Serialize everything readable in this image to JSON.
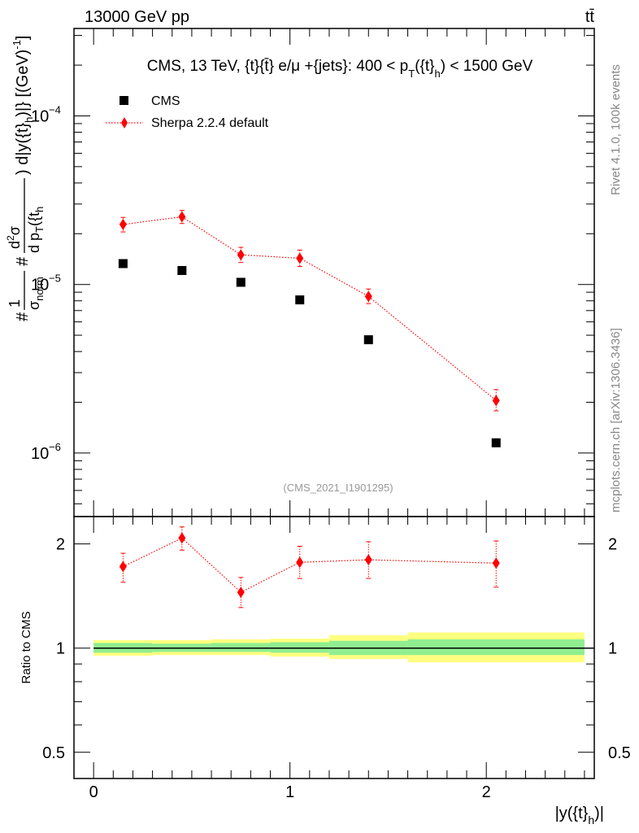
{
  "header": {
    "energy_label": "13000 GeV pp",
    "process_label": "tt̄"
  },
  "side_labels": {
    "rivet": "Rivet 4.1.0,  100k events",
    "mcplots": "mcplots.cern.ch [arXiv:1306.3436]"
  },
  "chart_data": [
    {
      "type": "scatter",
      "panel": "main",
      "title": "CMS, 13 TeV, {t}{t̄} e/μ +{jets}: 400 <  p_T({t}_h) < 1500 GeV",
      "ylabel": "# 1/σ_norm  # d²σ / d p_T({t_h) d|y({t}_h)|} [(GeV)⁻¹]",
      "yscale": "log",
      "xlim": [
        -0.1,
        2.55
      ],
      "ylim": [
        4.2e-07,
        0.00033
      ],
      "ytick_labels": [
        {
          "value": 1e-06,
          "base": "10",
          "exp": "−6"
        },
        {
          "value": 1e-05,
          "base": "10",
          "exp": "−5"
        },
        {
          "value": 0.0001,
          "base": "10",
          "exp": "−4"
        }
      ],
      "watermark": "(CMS_2021_I1901295)",
      "legend": {
        "position": "top-left",
        "entries": [
          "CMS",
          "Sherpa 2.2.4 default"
        ]
      },
      "series": [
        {
          "name": "CMS",
          "marker": "square",
          "color": "#000000",
          "x": [
            0.15,
            0.45,
            0.75,
            1.05,
            1.4,
            2.05
          ],
          "xerr": [
            0.15,
            0.15,
            0.15,
            0.15,
            0.2,
            0.45
          ],
          "y": [
            1.33e-05,
            1.21e-05,
            1.03e-05,
            8.1e-06,
            4.7e-06,
            1.15e-06
          ]
        },
        {
          "name": "Sherpa 2.2.4 default",
          "marker": "diamond",
          "line": "dotted",
          "color": "#ff0000",
          "x": [
            0.15,
            0.45,
            0.75,
            1.05,
            1.4,
            2.05
          ],
          "y": [
            2.27e-05,
            2.52e-05,
            1.5e-05,
            1.43e-05,
            8.5e-06,
            2.05e-06
          ],
          "y_low": [
            2.05e-05,
            2.3e-05,
            1.35e-05,
            1.28e-05,
            7.7e-06,
            1.78e-06
          ],
          "y_high": [
            2.5e-05,
            2.75e-05,
            1.66e-05,
            1.6e-05,
            9.4e-06,
            2.38e-06
          ]
        }
      ]
    },
    {
      "type": "scatter",
      "panel": "ratio",
      "ylabel": "Ratio to CMS",
      "xlabel": "|y({t}_h)|",
      "xlim": [
        -0.1,
        2.55
      ],
      "ylim": [
        0.42,
        2.4
      ],
      "yscale": "log",
      "yticks": [
        0.5,
        1,
        2
      ],
      "ytick_labels": [
        "0.5",
        "1",
        "2"
      ],
      "xticks": [
        0,
        1,
        2
      ],
      "xtick_labels": [
        "0",
        "1",
        "2"
      ],
      "reference_line": 1,
      "bands": {
        "bin_edges": [
          0,
          0.3,
          0.6,
          0.9,
          1.2,
          1.6,
          2.5
        ],
        "inner": [
          [
            0.97,
            1.035
          ],
          [
            0.975,
            1.03
          ],
          [
            0.975,
            1.035
          ],
          [
            0.97,
            1.04
          ],
          [
            0.955,
            1.05
          ],
          [
            0.955,
            1.06
          ]
        ],
        "outer": [
          [
            0.95,
            1.055
          ],
          [
            0.955,
            1.055
          ],
          [
            0.955,
            1.06
          ],
          [
            0.945,
            1.065
          ],
          [
            0.93,
            1.09
          ],
          [
            0.91,
            1.11
          ]
        ],
        "inner_color": "#90ee90",
        "outer_color": "#ffff80"
      },
      "series": [
        {
          "name": "Sherpa 2.2.4 default",
          "marker": "diamond",
          "line": "dotted",
          "color": "#ff0000",
          "x": [
            0.15,
            0.45,
            0.75,
            1.05,
            1.4,
            2.05
          ],
          "y": [
            1.72,
            2.08,
            1.45,
            1.77,
            1.8,
            1.76
          ],
          "y_low": [
            1.55,
            1.92,
            1.31,
            1.59,
            1.59,
            1.5
          ],
          "y_high": [
            1.88,
            2.24,
            1.6,
            1.97,
            2.03,
            2.04
          ]
        }
      ]
    }
  ]
}
